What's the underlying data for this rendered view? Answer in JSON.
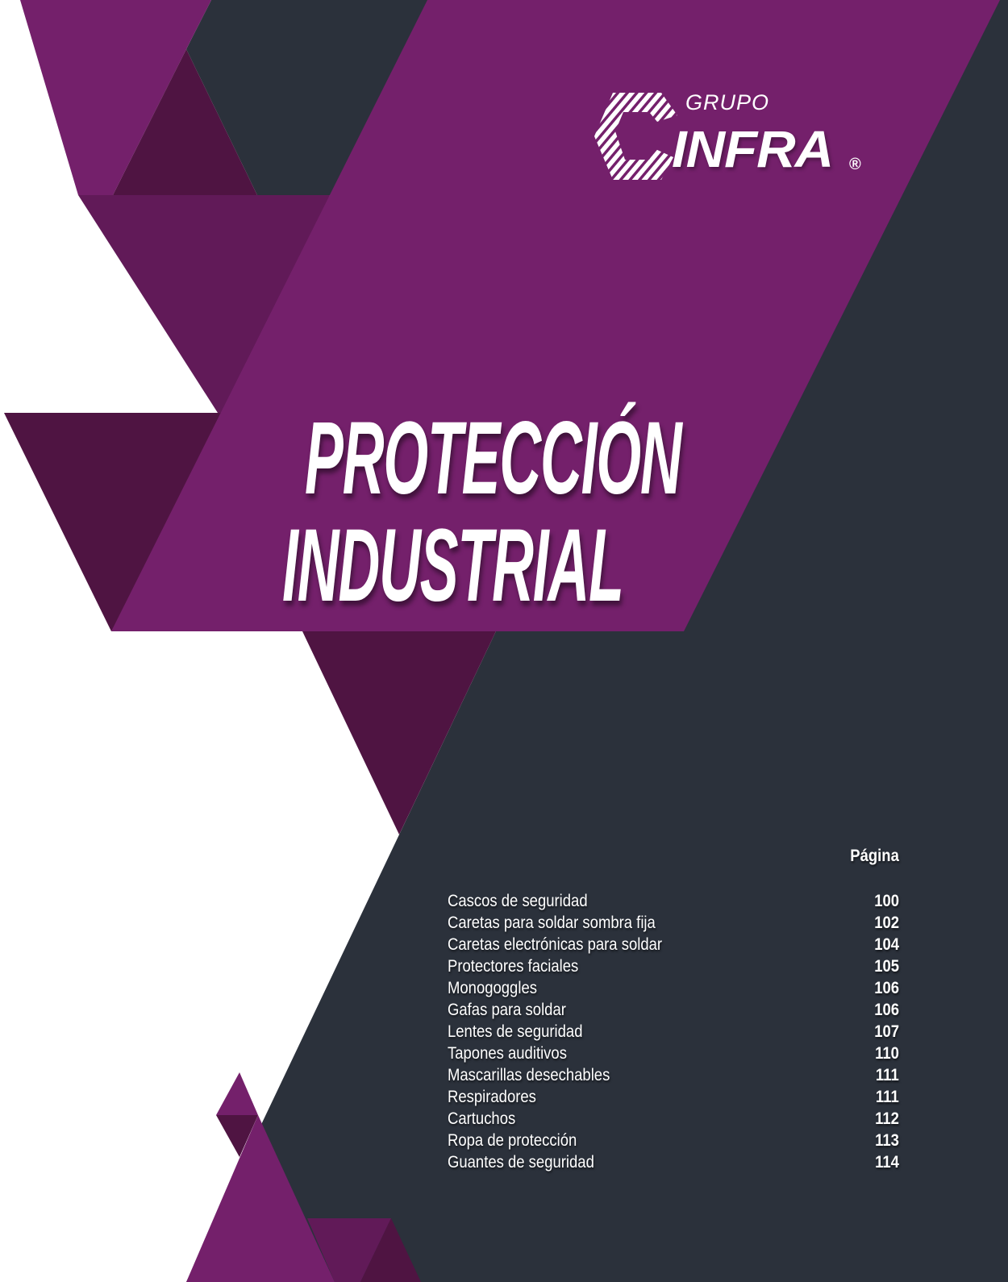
{
  "colors": {
    "dark_gray": "#2b313b",
    "purple": "#74206b",
    "mid_purple": "#611a58",
    "dark_purple": "#4f1442",
    "white": "#ffffff"
  },
  "logo": {
    "grupo": "GRUPO",
    "name": "INFRA",
    "registered": "®",
    "icon": "infra-c-logo-icon"
  },
  "title": {
    "line1": "PROTECCIÓN",
    "line2": "INDUSTRIAL"
  },
  "toc": {
    "header": "Página",
    "items": [
      {
        "label": "Cascos de seguridad",
        "page": "100"
      },
      {
        "label": "Caretas para soldar sombra fija",
        "page": "102"
      },
      {
        "label": "Caretas electrónicas para soldar",
        "page": "104"
      },
      {
        "label": "Protectores faciales",
        "page": "105"
      },
      {
        "label": "Monogoggles",
        "page": "106"
      },
      {
        "label": "Gafas para soldar",
        "page": "106"
      },
      {
        "label": "Lentes de seguridad",
        "page": "107"
      },
      {
        "label": "Tapones auditivos",
        "page": "110"
      },
      {
        "label": "Mascarillas desechables",
        "page": "111"
      },
      {
        "label": "Respiradores",
        "page": "111"
      },
      {
        "label": "Cartuchos",
        "page": "112"
      },
      {
        "label": "Ropa de protección",
        "page": "113"
      },
      {
        "label": "Guantes de seguridad",
        "page": "114"
      }
    ]
  }
}
